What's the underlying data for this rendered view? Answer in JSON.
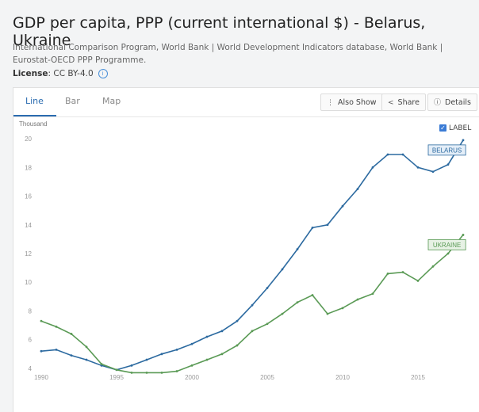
{
  "header": {
    "title": "GDP per capita, PPP (current international $) - Belarus, Ukraine",
    "subtitle": "International Comparison Program, World Bank | World Development Indicators database, World Bank | Eurostat-OECD PPP Programme.",
    "license_label": "License",
    "license_value": ": CC BY-4.0"
  },
  "tabs": [
    {
      "label": "Line",
      "active": true
    },
    {
      "label": "Bar",
      "active": false
    },
    {
      "label": "Map",
      "active": false
    }
  ],
  "toolbar": {
    "also_show": "Also Show",
    "share": "Share",
    "details": "Details"
  },
  "label_toggle": {
    "label": "LABEL",
    "checked": true
  },
  "chart_data": {
    "type": "line",
    "unit_label": "Thousand",
    "xlim": [
      1990,
      2018
    ],
    "ylim": [
      3.5,
      20.5
    ],
    "x_ticks": [
      1990,
      1995,
      2000,
      2005,
      2010,
      2015
    ],
    "y_ticks": [
      4,
      6,
      8,
      10,
      12,
      14,
      16,
      18,
      20
    ],
    "grid": false,
    "x": [
      1990,
      1991,
      1992,
      1993,
      1994,
      1995,
      1996,
      1997,
      1998,
      1999,
      2000,
      2001,
      2002,
      2003,
      2004,
      2005,
      2006,
      2007,
      2008,
      2009,
      2010,
      2011,
      2012,
      2013,
      2014,
      2015,
      2016,
      2017,
      2018
    ],
    "series": [
      {
        "name": "BELARUS",
        "color": "#2c6aa0",
        "values": [
          5.2,
          5.3,
          4.9,
          4.6,
          4.2,
          3.9,
          4.2,
          4.6,
          5.0,
          5.3,
          5.7,
          6.2,
          6.6,
          7.3,
          8.4,
          9.6,
          10.9,
          12.3,
          13.8,
          14.0,
          15.3,
          16.5,
          18.0,
          18.9,
          18.9,
          18.0,
          17.7,
          18.2,
          19.9
        ]
      },
      {
        "name": "UKRAINE",
        "color": "#5a9a55",
        "values": [
          7.3,
          6.9,
          6.4,
          5.5,
          4.3,
          3.9,
          3.7,
          3.7,
          3.7,
          3.8,
          4.2,
          4.6,
          5.0,
          5.6,
          6.6,
          7.1,
          7.8,
          8.6,
          9.1,
          7.8,
          8.2,
          8.8,
          9.2,
          10.6,
          10.7,
          10.1,
          11.1,
          12.0,
          13.3
        ]
      }
    ]
  }
}
